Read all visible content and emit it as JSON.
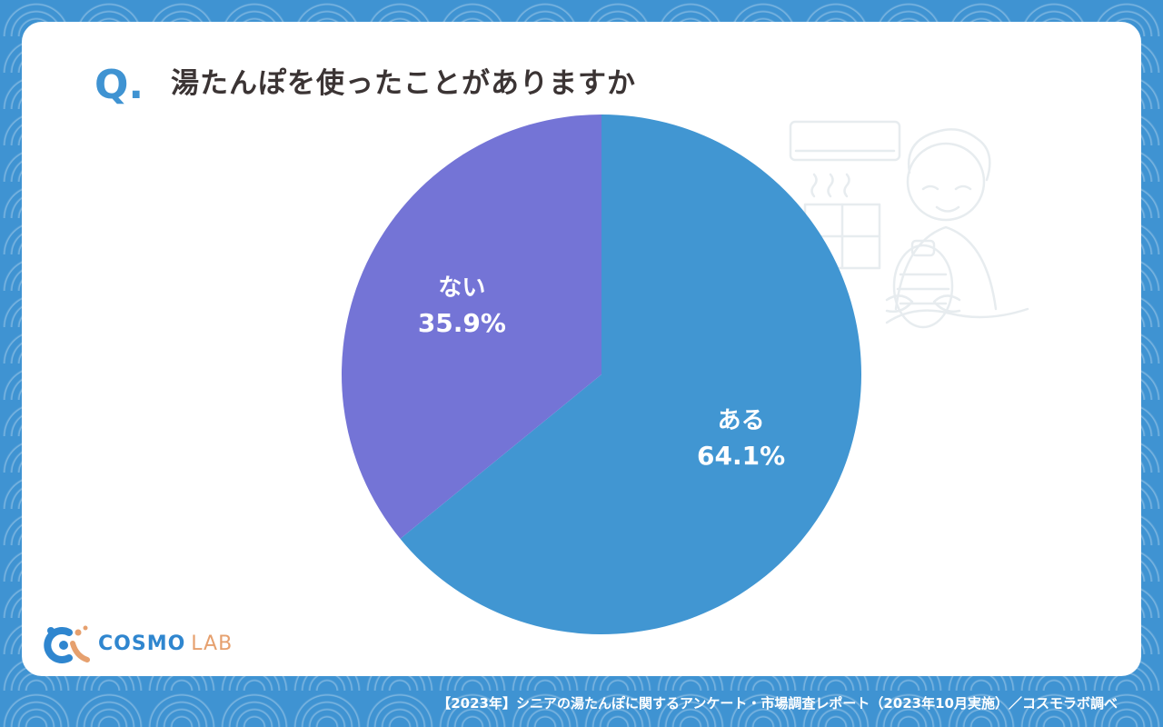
{
  "header": {
    "q_mark": "Q.",
    "question": "湯たんぽを使ったことがありますか"
  },
  "chart_data": {
    "type": "pie",
    "title": "湯たんぽを使ったことがありますか",
    "slices": [
      {
        "label": "ある",
        "value": 64.1,
        "display": "64.1%",
        "color": "#4196d2"
      },
      {
        "label": "ない",
        "value": 35.9,
        "display": "35.9%",
        "color": "#7474d6"
      }
    ],
    "start_angle": "12 o'clock",
    "direction": "clockwise"
  },
  "logo": {
    "brand_main": "COSMO",
    "brand_sub": "LAB"
  },
  "footer": {
    "source": "【2023年】シニアの湯たんぽに関するアンケート・市場調査レポート（2023年10月実施）／コスモラボ調べ"
  },
  "colors": {
    "background": "#3f93d2",
    "card": "#ffffff",
    "accent_blue": "#3f93d2",
    "title_text": "#3b3434"
  },
  "icons": {
    "illustration": "senior-woman-holding-hot-water-bottle-illustration",
    "logo_mark": "cosmo-lab-logo-mark"
  }
}
